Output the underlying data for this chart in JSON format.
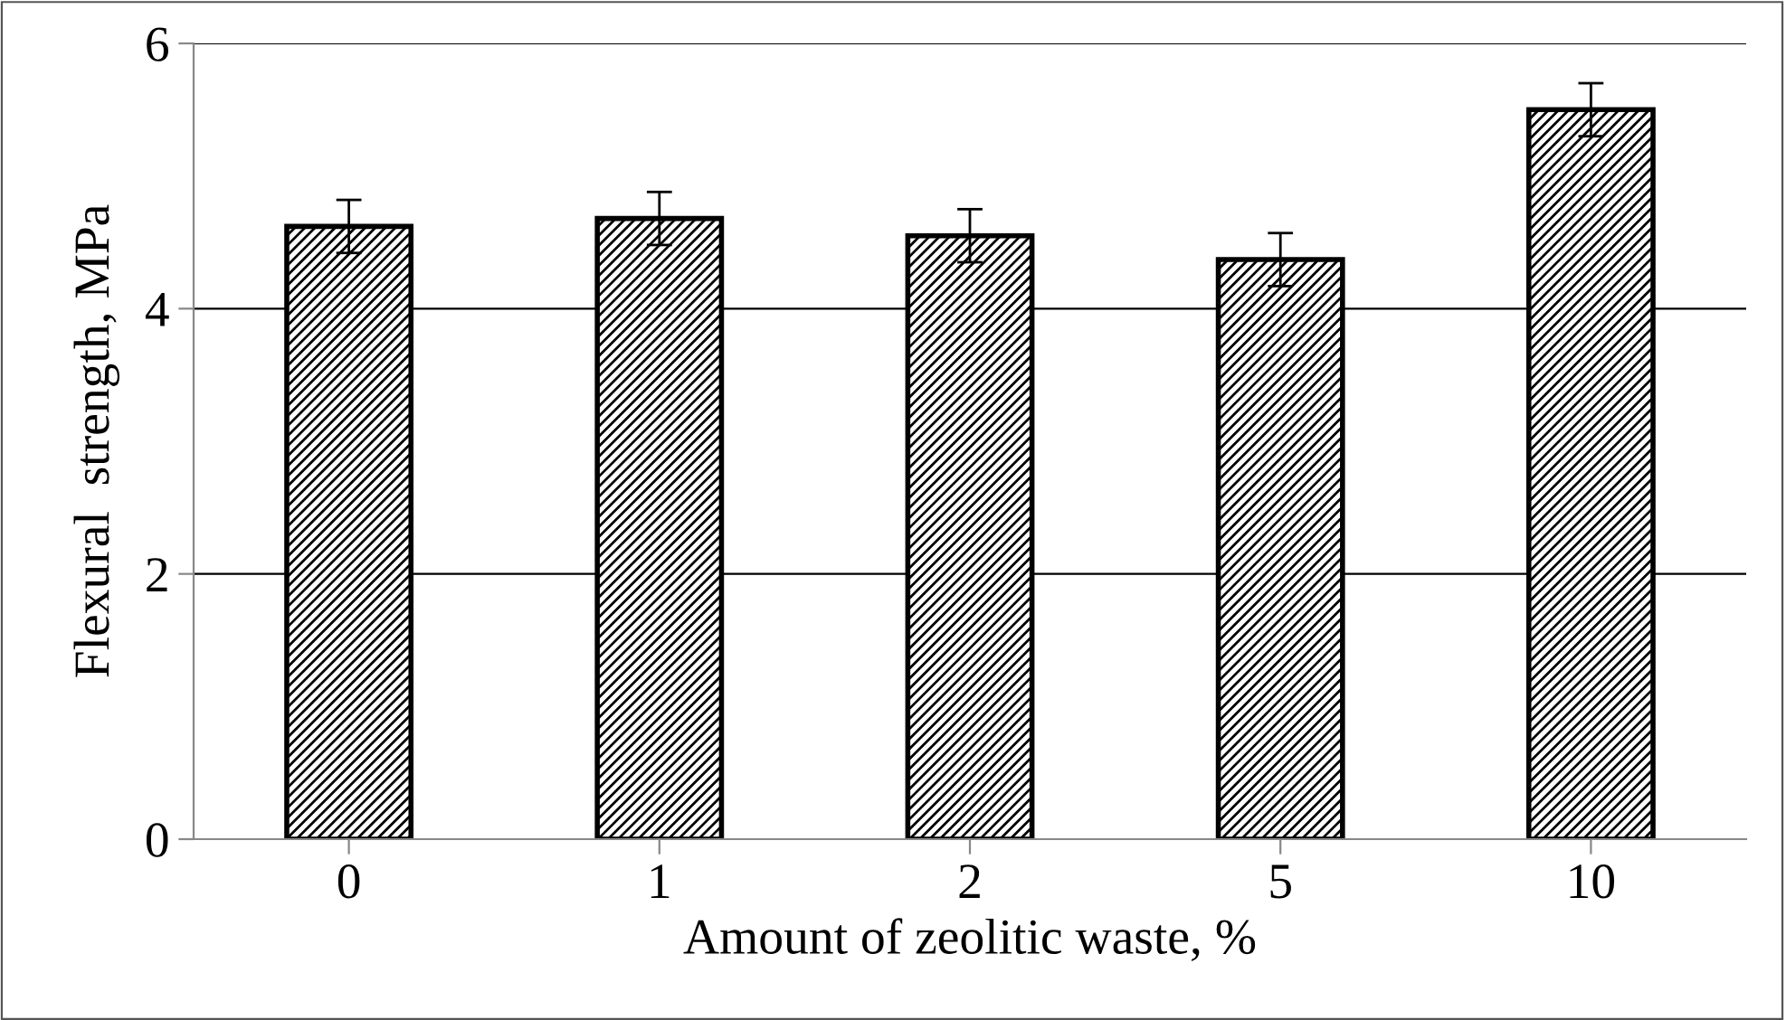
{
  "chart_data": {
    "type": "bar",
    "xlabel": "Amount of zeolitic waste, %",
    "ylabel": "Flexural  strength, MPa",
    "categories": [
      "0",
      "1",
      "2",
      "5",
      "10"
    ],
    "values": [
      4.62,
      4.68,
      4.55,
      4.37,
      5.5
    ],
    "errors": [
      0.2,
      0.2,
      0.2,
      0.2,
      0.2
    ],
    "color": "#000000",
    "ylim": [
      0,
      6
    ],
    "yticks": [
      0,
      2,
      4,
      6
    ],
    "grid": "y"
  }
}
